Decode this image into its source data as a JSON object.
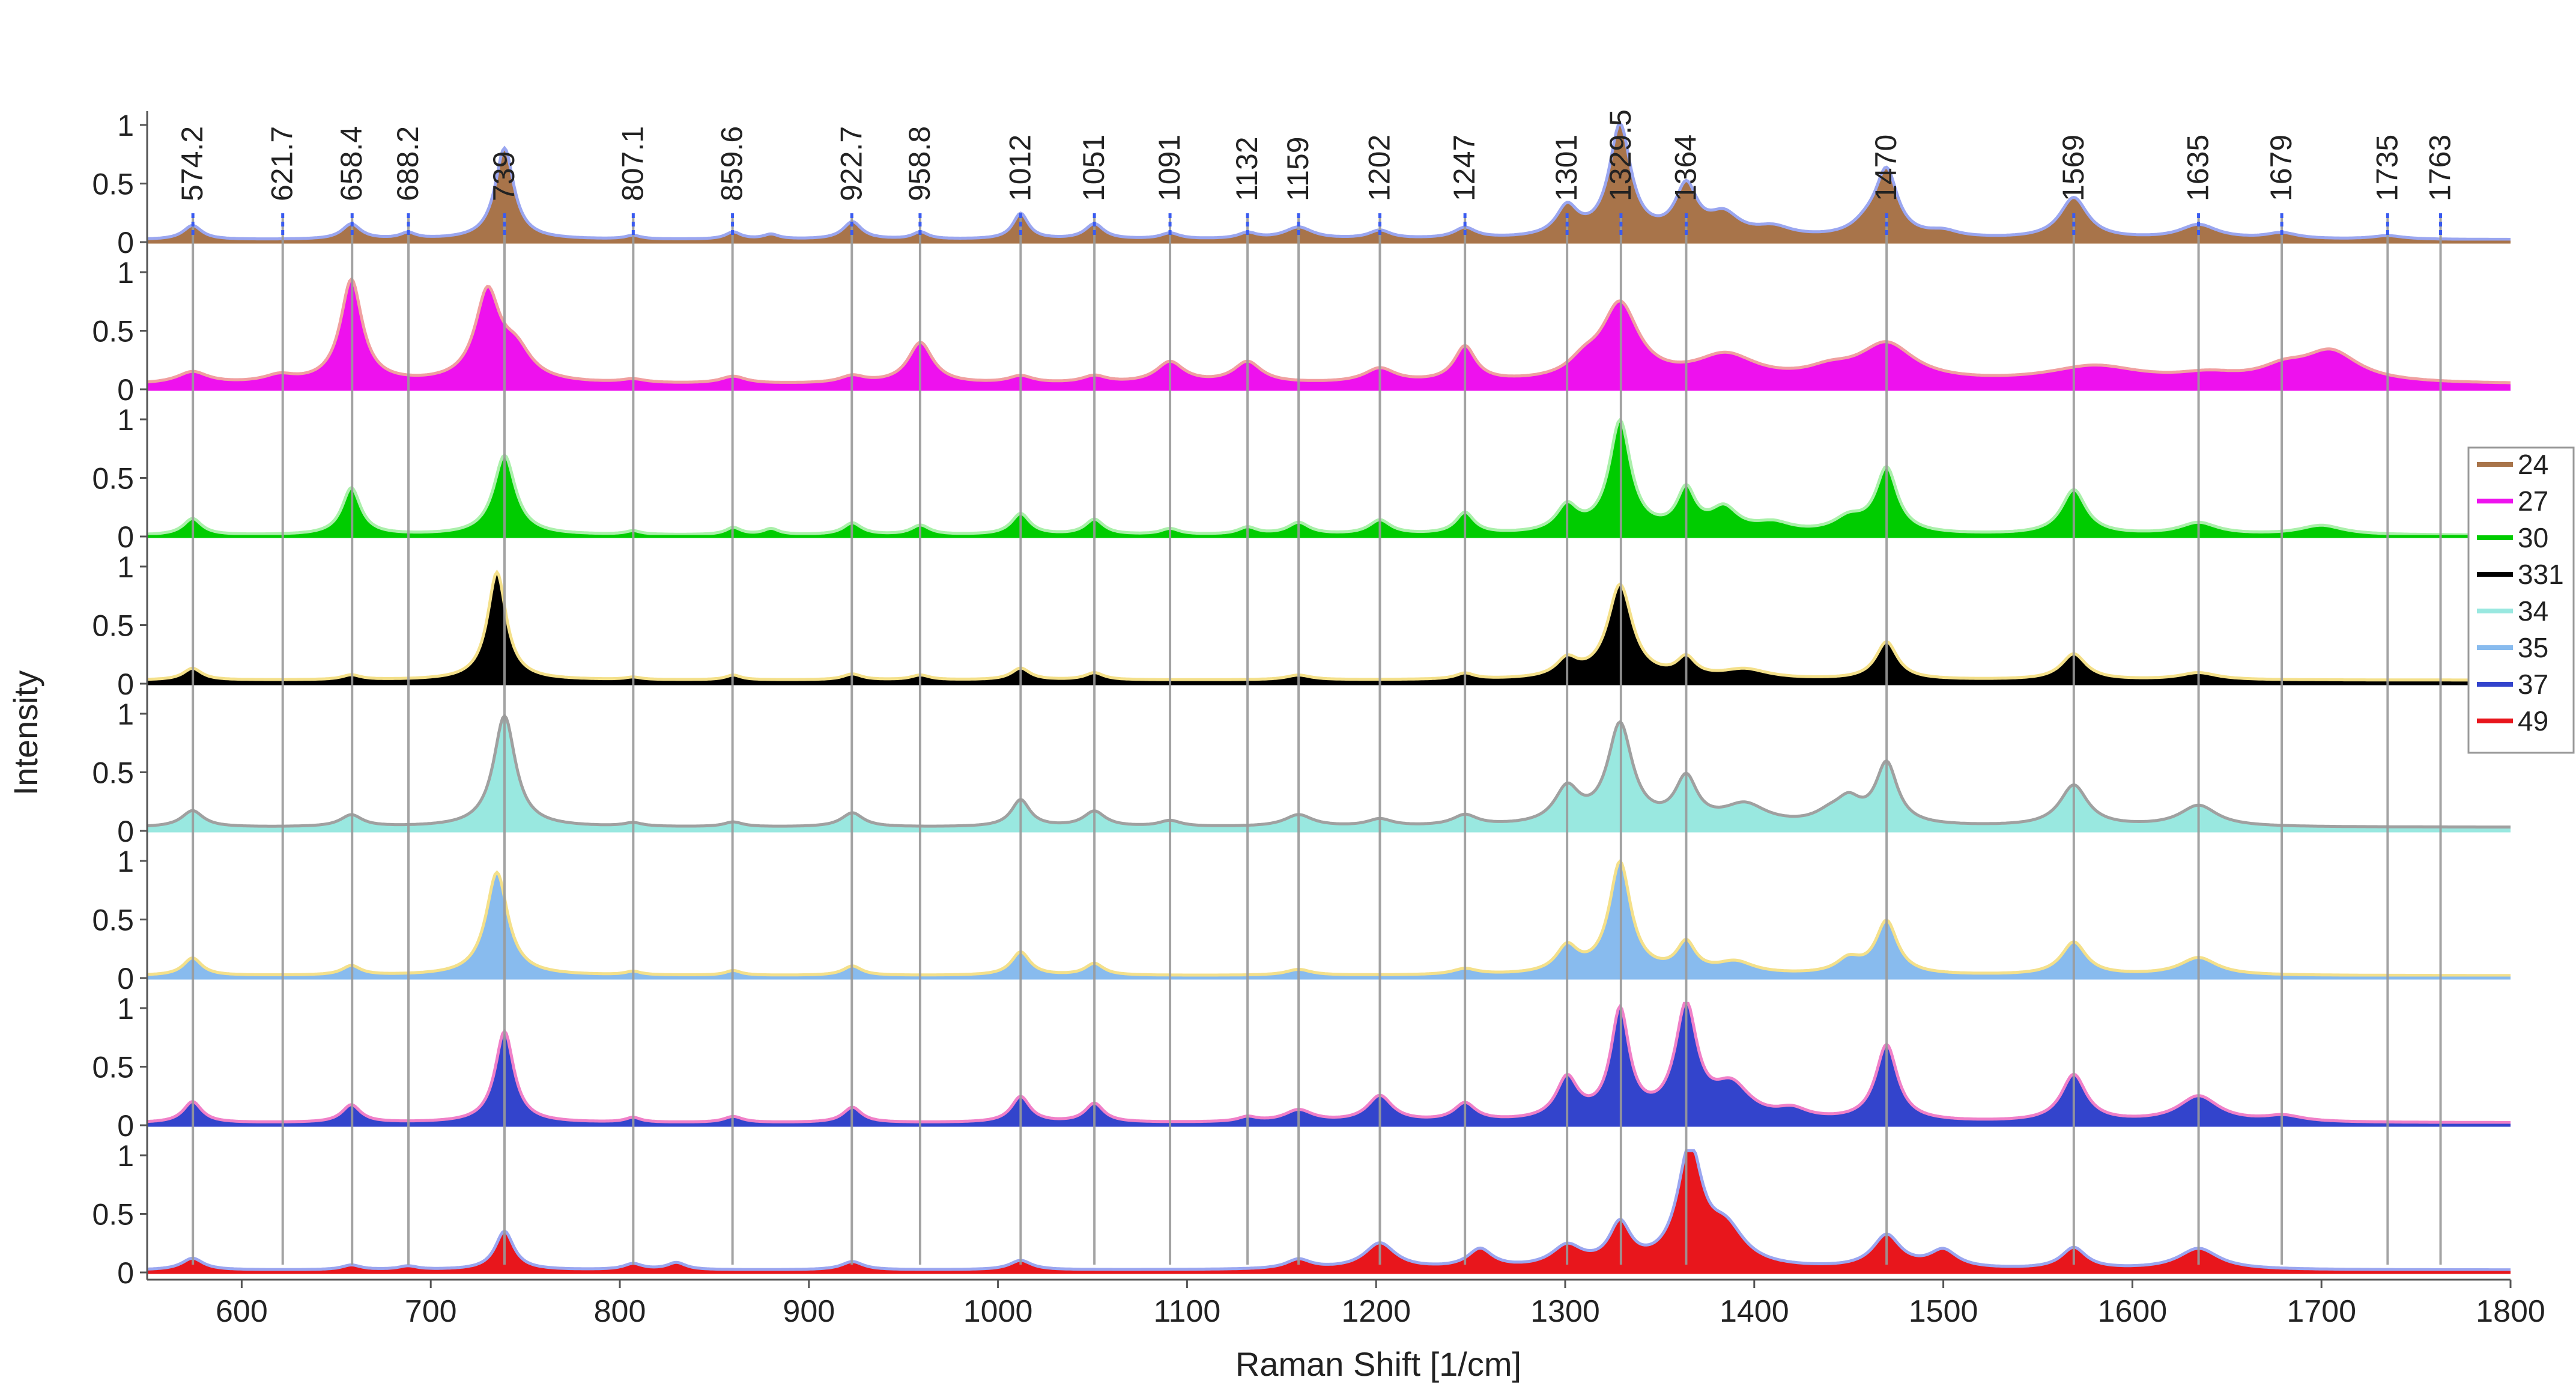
{
  "chart_data": {
    "type": "area",
    "title": "",
    "xlabel": "Raman Shift [1/cm]",
    "ylabel": "Intensity",
    "xlim": [
      550,
      1800
    ],
    "ylim": [
      0,
      1
    ],
    "x_ticks": [
      600,
      700,
      800,
      900,
      1000,
      1100,
      1200,
      1300,
      1400,
      1500,
      1600,
      1700,
      1800
    ],
    "y_ticks": [
      0,
      0.5,
      1
    ],
    "y_tick_labels": [
      "0",
      "0.5",
      "1"
    ],
    "peak_labels": [
      "574.2",
      "621.7",
      "658.4",
      "688.2",
      "739",
      "807.1",
      "859.6",
      "922.7",
      "958.8",
      "1012",
      "1051",
      "1091",
      "1132",
      "1159",
      "1202",
      "1247",
      "1301",
      "1329.5",
      "1364",
      "1470",
      "1569",
      "1635",
      "1679",
      "1735",
      "1763"
    ],
    "peak_positions": [
      574.2,
      621.7,
      658.4,
      688.2,
      739,
      807.1,
      859.6,
      922.7,
      958.8,
      1012,
      1051,
      1091,
      1132,
      1159,
      1202,
      1247,
      1301,
      1329.5,
      1364,
      1470,
      1569,
      1635,
      1679,
      1735,
      1763
    ],
    "legend_position": "right",
    "series": [
      {
        "name": "24",
        "fill": "#A8744A",
        "line": "#9AA6F0",
        "legend": "#A8744A",
        "baseline": 0.02,
        "peaks": [
          [
            574,
            0.12,
            6
          ],
          [
            658,
            0.13,
            6
          ],
          [
            688,
            0.05,
            5
          ],
          [
            739,
            0.78,
            6
          ],
          [
            807,
            0.03,
            5
          ],
          [
            860,
            0.06,
            5
          ],
          [
            880,
            0.04,
            5
          ],
          [
            923,
            0.15,
            6
          ],
          [
            959,
            0.06,
            5
          ],
          [
            1012,
            0.22,
            5
          ],
          [
            1051,
            0.13,
            6
          ],
          [
            1091,
            0.05,
            6
          ],
          [
            1132,
            0.05,
            6
          ],
          [
            1159,
            0.1,
            9
          ],
          [
            1202,
            0.07,
            7
          ],
          [
            1247,
            0.09,
            7
          ],
          [
            1301,
            0.25,
            7
          ],
          [
            1329,
            0.95,
            7
          ],
          [
            1364,
            0.42,
            7
          ],
          [
            1384,
            0.18,
            10
          ],
          [
            1410,
            0.08,
            12
          ],
          [
            1460,
            0.1,
            10
          ],
          [
            1470,
            0.55,
            7
          ],
          [
            1500,
            0.05,
            10
          ],
          [
            1569,
            0.35,
            9
          ],
          [
            1635,
            0.12,
            12
          ],
          [
            1679,
            0.05,
            10
          ],
          [
            1735,
            0.03,
            10
          ]
        ]
      },
      {
        "name": "27",
        "fill": "#EE11EE",
        "line": "#F0A0A0",
        "legend": "#EE11EE",
        "baseline": 0.04,
        "peaks": [
          [
            574,
            0.1,
            10
          ],
          [
            620,
            0.06,
            10
          ],
          [
            658,
            0.88,
            7
          ],
          [
            730,
            0.75,
            8
          ],
          [
            745,
            0.25,
            10
          ],
          [
            807,
            0.03,
            8
          ],
          [
            860,
            0.06,
            8
          ],
          [
            923,
            0.06,
            8
          ],
          [
            959,
            0.35,
            8
          ],
          [
            1012,
            0.06,
            8
          ],
          [
            1051,
            0.06,
            8
          ],
          [
            1091,
            0.18,
            9
          ],
          [
            1132,
            0.18,
            9
          ],
          [
            1202,
            0.12,
            10
          ],
          [
            1247,
            0.3,
            7
          ],
          [
            1329,
            0.65,
            12
          ],
          [
            1310,
            0.12,
            10
          ],
          [
            1385,
            0.22,
            20
          ],
          [
            1470,
            0.32,
            18
          ],
          [
            1440,
            0.08,
            15
          ],
          [
            1580,
            0.14,
            30
          ],
          [
            1640,
            0.06,
            20
          ],
          [
            1705,
            0.26,
            18
          ],
          [
            1680,
            0.1,
            15
          ]
        ]
      },
      {
        "name": "30",
        "fill": "#00CC00",
        "line": "#AAF0AA",
        "legend": "#00CC00",
        "baseline": 0.01,
        "peaks": [
          [
            574,
            0.14,
            6
          ],
          [
            658,
            0.4,
            6
          ],
          [
            739,
            0.68,
            7
          ],
          [
            807,
            0.03,
            5
          ],
          [
            860,
            0.06,
            5
          ],
          [
            880,
            0.05,
            5
          ],
          [
            923,
            0.1,
            6
          ],
          [
            959,
            0.08,
            6
          ],
          [
            1012,
            0.18,
            6
          ],
          [
            1051,
            0.13,
            6
          ],
          [
            1091,
            0.05,
            6
          ],
          [
            1132,
            0.06,
            6
          ],
          [
            1159,
            0.1,
            7
          ],
          [
            1202,
            0.12,
            7
          ],
          [
            1247,
            0.18,
            6
          ],
          [
            1301,
            0.22,
            7
          ],
          [
            1329,
            0.95,
            7
          ],
          [
            1364,
            0.35,
            6
          ],
          [
            1384,
            0.2,
            9
          ],
          [
            1410,
            0.08,
            12
          ],
          [
            1470,
            0.55,
            7
          ],
          [
            1450,
            0.12,
            10
          ],
          [
            1569,
            0.38,
            8
          ],
          [
            1635,
            0.1,
            12
          ],
          [
            1700,
            0.08,
            14
          ]
        ]
      },
      {
        "name": "331",
        "fill": "#000000",
        "line": "#F4E08A",
        "legend": "#000000",
        "baseline": 0.03,
        "peaks": [
          [
            574,
            0.1,
            6
          ],
          [
            658,
            0.04,
            6
          ],
          [
            735,
            0.92,
            6
          ],
          [
            807,
            0.02,
            5
          ],
          [
            860,
            0.04,
            5
          ],
          [
            923,
            0.05,
            6
          ],
          [
            959,
            0.04,
            6
          ],
          [
            1012,
            0.1,
            6
          ],
          [
            1051,
            0.06,
            6
          ],
          [
            1159,
            0.04,
            8
          ],
          [
            1247,
            0.05,
            6
          ],
          [
            1301,
            0.15,
            7
          ],
          [
            1329,
            0.8,
            8
          ],
          [
            1364,
            0.16,
            6
          ],
          [
            1395,
            0.08,
            15
          ],
          [
            1470,
            0.32,
            7
          ],
          [
            1569,
            0.22,
            8
          ],
          [
            1635,
            0.06,
            12
          ]
        ]
      },
      {
        "name": "34",
        "fill": "#99E8E0",
        "line": "#A0A0A0",
        "legend": "#99E8E0",
        "baseline": 0.03,
        "peaks": [
          [
            574,
            0.14,
            7
          ],
          [
            658,
            0.1,
            7
          ],
          [
            739,
            0.95,
            7
          ],
          [
            807,
            0.03,
            6
          ],
          [
            860,
            0.04,
            6
          ],
          [
            923,
            0.12,
            7
          ],
          [
            1012,
            0.23,
            6
          ],
          [
            1051,
            0.13,
            7
          ],
          [
            1091,
            0.05,
            7
          ],
          [
            1159,
            0.1,
            9
          ],
          [
            1202,
            0.06,
            8
          ],
          [
            1247,
            0.09,
            8
          ],
          [
            1301,
            0.3,
            8
          ],
          [
            1329,
            0.85,
            8
          ],
          [
            1364,
            0.38,
            7
          ],
          [
            1395,
            0.17,
            14
          ],
          [
            1440,
            0.08,
            10
          ],
          [
            1470,
            0.52,
            7
          ],
          [
            1450,
            0.18,
            8
          ],
          [
            1569,
            0.35,
            9
          ],
          [
            1635,
            0.18,
            12
          ]
        ]
      },
      {
        "name": "35",
        "fill": "#88BBEE",
        "line": "#F4E08A",
        "legend": "#88BBEE",
        "baseline": 0.02,
        "peaks": [
          [
            574,
            0.15,
            6
          ],
          [
            658,
            0.08,
            6
          ],
          [
            735,
            0.88,
            7
          ],
          [
            807,
            0.03,
            5
          ],
          [
            860,
            0.04,
            5
          ],
          [
            923,
            0.08,
            6
          ],
          [
            1012,
            0.2,
            6
          ],
          [
            1051,
            0.1,
            6
          ],
          [
            1159,
            0.05,
            8
          ],
          [
            1247,
            0.05,
            8
          ],
          [
            1301,
            0.22,
            7
          ],
          [
            1329,
            0.95,
            7
          ],
          [
            1364,
            0.25,
            6
          ],
          [
            1390,
            0.1,
            12
          ],
          [
            1470,
            0.45,
            7
          ],
          [
            1450,
            0.12,
            8
          ],
          [
            1569,
            0.28,
            8
          ],
          [
            1635,
            0.15,
            12
          ]
        ]
      },
      {
        "name": "37",
        "fill": "#3344CC",
        "line": "#F080C8",
        "legend": "#3344CC",
        "baseline": 0.02,
        "peaks": [
          [
            574,
            0.18,
            6
          ],
          [
            658,
            0.15,
            6
          ],
          [
            739,
            0.78,
            6
          ],
          [
            807,
            0.04,
            5
          ],
          [
            860,
            0.05,
            6
          ],
          [
            923,
            0.13,
            6
          ],
          [
            1012,
            0.22,
            6
          ],
          [
            1051,
            0.16,
            6
          ],
          [
            1132,
            0.04,
            6
          ],
          [
            1159,
            0.1,
            9
          ],
          [
            1202,
            0.22,
            8
          ],
          [
            1247,
            0.15,
            7
          ],
          [
            1301,
            0.35,
            7
          ],
          [
            1329,
            0.92,
            6
          ],
          [
            1364,
            0.95,
            7
          ],
          [
            1388,
            0.28,
            12
          ],
          [
            1420,
            0.08,
            10
          ],
          [
            1470,
            0.65,
            7
          ],
          [
            1569,
            0.4,
            8
          ],
          [
            1635,
            0.22,
            13
          ],
          [
            1680,
            0.05,
            12
          ]
        ]
      },
      {
        "name": "49",
        "fill": "#E8161C",
        "line": "#9AA6F0",
        "legend": "#E8161C",
        "baseline": 0.02,
        "peaks": [
          [
            574,
            0.1,
            7
          ],
          [
            658,
            0.04,
            6
          ],
          [
            688,
            0.03,
            6
          ],
          [
            739,
            0.33,
            6
          ],
          [
            807,
            0.05,
            6
          ],
          [
            830,
            0.06,
            6
          ],
          [
            923,
            0.07,
            7
          ],
          [
            1012,
            0.08,
            7
          ],
          [
            1159,
            0.08,
            8
          ],
          [
            1202,
            0.22,
            10
          ],
          [
            1255,
            0.16,
            8
          ],
          [
            1301,
            0.18,
            10
          ],
          [
            1329,
            0.35,
            7
          ],
          [
            1366,
            0.99,
            8
          ],
          [
            1385,
            0.3,
            12
          ],
          [
            1470,
            0.28,
            9
          ],
          [
            1500,
            0.15,
            9
          ],
          [
            1569,
            0.18,
            8
          ],
          [
            1635,
            0.18,
            13
          ]
        ]
      }
    ]
  }
}
